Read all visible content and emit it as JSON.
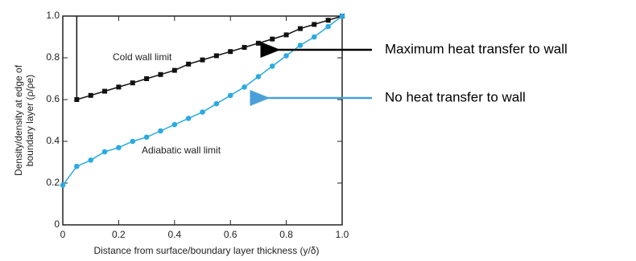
{
  "chart_data": {
    "type": "line",
    "xlabel": "Distance from surface/boundary layer thickness (y/δ)",
    "ylabel": [
      "Density/density at edge of",
      "boundary layer (ρ/ρe)"
    ],
    "xlim": [
      0,
      1
    ],
    "ylim": [
      0,
      1
    ],
    "xticks": [
      0,
      0.2,
      0.4,
      0.6,
      0.8,
      {
        "value": 1,
        "label": "1.0"
      }
    ],
    "yticks": [
      0,
      0.2,
      0.4,
      0.6,
      0.8,
      {
        "value": 1,
        "label": "1.0"
      }
    ],
    "series": [
      {
        "name": "Cold wall limit",
        "color": "#111111",
        "x": [
          0.05,
          0.1,
          0.15,
          0.2,
          0.25,
          0.3,
          0.35,
          0.4,
          0.45,
          0.5,
          0.55,
          0.6,
          0.65,
          0.7,
          0.75,
          0.8,
          0.85,
          0.9,
          0.95,
          1
        ],
        "values": [
          0.6,
          0.62,
          0.64,
          0.66,
          0.68,
          0.7,
          0.72,
          0.74,
          0.77,
          0.79,
          0.81,
          0.83,
          0.85,
          0.87,
          0.89,
          0.91,
          0.94,
          0.96,
          0.98,
          1
        ]
      },
      {
        "name": "Adiabatic wall limit",
        "color": "#2aaae2",
        "x": [
          0,
          0.05,
          0.1,
          0.15,
          0.2,
          0.25,
          0.3,
          0.35,
          0.4,
          0.45,
          0.5,
          0.55,
          0.6,
          0.65,
          0.7,
          0.75,
          0.8,
          0.85,
          0.9,
          0.95,
          1
        ],
        "values": [
          0.19,
          0.28,
          0.31,
          0.35,
          0.37,
          0.4,
          0.42,
          0.45,
          0.48,
          0.51,
          0.54,
          0.58,
          0.62,
          0.66,
          0.71,
          0.76,
          0.81,
          0.86,
          0.9,
          0.95,
          1
        ]
      }
    ],
    "annotations": [
      {
        "text": "Maximum heat transfer to wall",
        "color": "#000000"
      },
      {
        "text": "No heat transfer to wall",
        "color": "#4a9fd8"
      }
    ]
  }
}
